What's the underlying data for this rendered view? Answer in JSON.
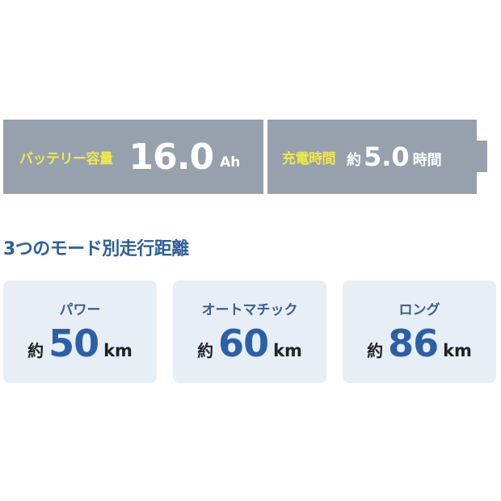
{
  "battery": {
    "capacity_label": "バッテリー容量",
    "capacity_value": "16.0",
    "capacity_unit": "Ah",
    "charge_label": "充電時間",
    "charge_prefix": "約",
    "charge_value": "5.0",
    "charge_unit": "時間"
  },
  "section_title": "3つのモード別走行距離",
  "modes": [
    {
      "name": "パワー",
      "prefix": "約",
      "value": "50",
      "unit": "km"
    },
    {
      "name": "オートマチック",
      "prefix": "約",
      "value": "60",
      "unit": "km"
    },
    {
      "name": "ロング",
      "prefix": "約",
      "value": "86",
      "unit": "km"
    }
  ],
  "colors": {
    "battery_bg": "#97a1ad",
    "label_yellow": "#f2e94a",
    "accent_blue": "#2b60a8",
    "card_bg": "#e8eef6"
  }
}
